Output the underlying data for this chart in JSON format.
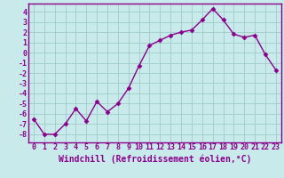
{
  "x": [
    0,
    1,
    2,
    3,
    4,
    5,
    6,
    7,
    8,
    9,
    10,
    11,
    12,
    13,
    14,
    15,
    16,
    17,
    18,
    19,
    20,
    21,
    22,
    23
  ],
  "y": [
    -6.5,
    -8.0,
    -8.0,
    -7.0,
    -5.5,
    -6.7,
    -4.8,
    -5.8,
    -5.0,
    -3.5,
    -1.3,
    0.7,
    1.2,
    1.7,
    2.0,
    2.2,
    3.2,
    4.3,
    3.2,
    1.8,
    1.5,
    1.7,
    -0.2,
    -1.7
  ],
  "line_color": "#8B008B",
  "marker": "D",
  "marker_size": 2.5,
  "bg_color": "#c8eaea",
  "grid_color": "#a0cccc",
  "xlabel": "Windchill (Refroidissement éolien,°C)",
  "xlabel_color": "#8B008B",
  "ylim": [
    -8.8,
    4.8
  ],
  "xlim": [
    -0.5,
    23.5
  ],
  "yticks": [
    -8,
    -7,
    -6,
    -5,
    -4,
    -3,
    -2,
    -1,
    0,
    1,
    2,
    3,
    4
  ],
  "xticks": [
    0,
    1,
    2,
    3,
    4,
    5,
    6,
    7,
    8,
    9,
    10,
    11,
    12,
    13,
    14,
    15,
    16,
    17,
    18,
    19,
    20,
    21,
    22,
    23
  ],
  "tick_color": "#8B008B",
  "tick_fontsize": 6,
  "xlabel_fontsize": 7,
  "line_width": 1.0,
  "spine_color": "#8B008B"
}
